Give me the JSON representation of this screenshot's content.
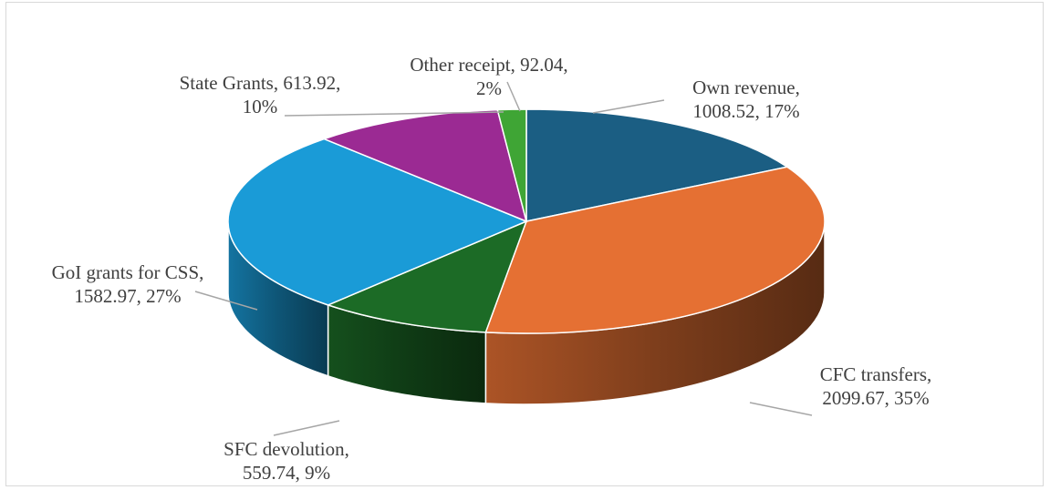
{
  "chart_data": {
    "type": "pie",
    "three_d": true,
    "title": "",
    "slices": [
      {
        "label": "Own revenue",
        "value": 1008.52,
        "percent": 17,
        "color": "#1b5e83",
        "line1": "Own revenue,",
        "line2": "1008.52, 17%"
      },
      {
        "label": "CFC transfers",
        "value": 2099.67,
        "percent": 35,
        "color": "#e57033",
        "line1": "CFC transfers,",
        "line2": "2099.67, 35%"
      },
      {
        "label": "SFC devolution",
        "value": 559.74,
        "percent": 9,
        "color": "#1c6b26",
        "line1": "SFC devolution,",
        "line2": "559.74, 9%"
      },
      {
        "label": "GoI grants for CSS",
        "value": 1582.97,
        "percent": 27,
        "color": "#1a9bd7",
        "line1": "GoI grants for CSS,",
        "line2": "1582.97, 27%"
      },
      {
        "label": "State Grants",
        "value": 613.92,
        "percent": 10,
        "color": "#9b2a93",
        "line1": "State Grants, 613.92,",
        "line2": "10%"
      },
      {
        "label": "Other receipt",
        "value": 92.04,
        "percent": 2,
        "color": "#3fa535",
        "line1": "Other receipt, 92.04,",
        "line2": "2%"
      }
    ],
    "legend": "none",
    "data_labels": "outside with leader lines"
  }
}
